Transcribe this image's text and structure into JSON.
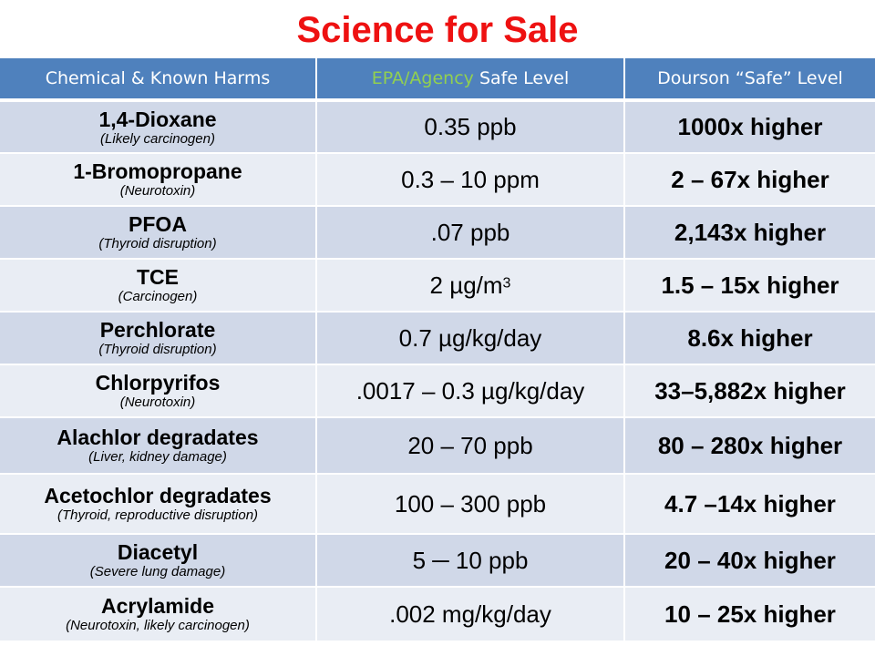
{
  "title": "Science for Sale",
  "table": {
    "headers": {
      "col1": "Chemical & Known Harms",
      "col2_agency": "EPA/Agency",
      "col2_rest": " Safe Level",
      "col3": "Dourson “Safe” Level"
    },
    "rows": [
      {
        "chemical": "1,4-Dioxane",
        "harms": "(Likely carcinogen)",
        "epa": "0.35 ppb",
        "epa_sup": "",
        "dourson": "1000x higher"
      },
      {
        "chemical": "1-Bromopropane",
        "harms": "(Neurotoxin)",
        "epa": "0.3 – 10 ppm",
        "epa_sup": "",
        "dourson": "2 – 67x higher"
      },
      {
        "chemical": "PFOA",
        "harms": "(Thyroid disruption)",
        "epa": ".07 ppb",
        "epa_sup": "",
        "dourson": "2,143x higher"
      },
      {
        "chemical": "TCE",
        "harms": "(Carcinogen)",
        "epa": "2 µg/m",
        "epa_sup": "3",
        "dourson": "1.5 – 15x higher"
      },
      {
        "chemical": "Perchlorate",
        "harms": "(Thyroid disruption)",
        "epa": "0.7 µg/kg/day",
        "epa_sup": "",
        "dourson": "8.6x higher"
      },
      {
        "chemical": "Chlorpyrifos",
        "harms": "(Neurotoxin)",
        "epa": ".0017 – 0.3 µg/kg/day",
        "epa_sup": "",
        "dourson": "33–5,882x higher"
      },
      {
        "chemical": "Alachlor degradates",
        "harms": "(Liver, kidney damage)",
        "epa": "20 – 70 ppb",
        "epa_sup": "",
        "dourson": "80 – 280x higher"
      },
      {
        "chemical": "Acetochlor degradates",
        "harms": "(Thyroid, reproductive disruption)",
        "epa": "100 – 300 ppb",
        "epa_sup": "",
        "dourson": "4.7 –14x higher"
      },
      {
        "chemical": "Diacetyl",
        "harms": "(Severe lung damage)",
        "epa": "5 ─ 10 ppb",
        "epa_sup": "",
        "dourson": "20 – 40x higher"
      },
      {
        "chemical": "Acrylamide",
        "harms": "(Neurotoxin, likely carcinogen)",
        "epa": ".002 mg/kg/day",
        "epa_sup": "",
        "dourson": "10 – 25x higher"
      }
    ]
  },
  "colors": {
    "title": "#ee1111",
    "header_bg": "#4f81bd",
    "agency_text": "#92d050",
    "row_even": "#d0d8e8",
    "row_odd": "#e9edf4"
  }
}
